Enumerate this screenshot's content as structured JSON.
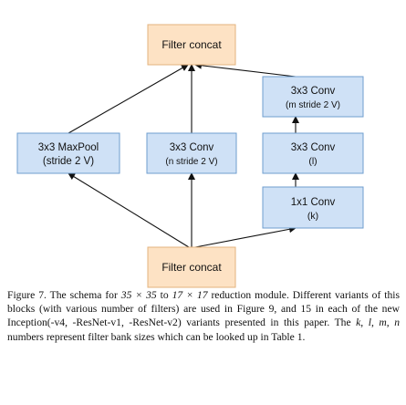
{
  "colors": {
    "concat_fill": "#fde2c4",
    "concat_stroke": "#e3b37e",
    "conv_fill": "#cfe1f6",
    "conv_stroke": "#6f9ecf",
    "arrow": "#111111"
  },
  "nodes": {
    "top_concat": {
      "label": "Filter concat"
    },
    "maxpool": {
      "line1": "3x3 MaxPool",
      "line2": "(stride 2 V)"
    },
    "conv_n": {
      "line1": "3x3 Conv",
      "line2": "(n stride 2 V)"
    },
    "conv_m": {
      "line1": "3x3 Conv",
      "line2": "(m stride 2 V)"
    },
    "conv_l": {
      "line1": "3x3 Conv",
      "line2": "(l)"
    },
    "conv_k": {
      "line1": "1x1 Conv",
      "line2": "(k)"
    },
    "bottom_concat": {
      "label": "Filter concat"
    }
  },
  "caption": {
    "prefix": "Figure 7. The schema for ",
    "size_from": "35 × 35",
    "to_word": " to ",
    "size_to": "17 × 17",
    "text1": " reduction module. Different variants of this blocks (with various number of filters) are used in Figure 9, and 15 in each of the new Inception(-v4, -ResNet-v1, -ResNet-v2) variants presented in this paper. The ",
    "var_k": "k",
    "sep1": ", ",
    "var_l": "l",
    "sep2": ", ",
    "var_m": "m",
    "sep3": ", ",
    "var_n": "n",
    "text2": " numbers represent filter bank sizes which can be looked up in Table 1."
  }
}
